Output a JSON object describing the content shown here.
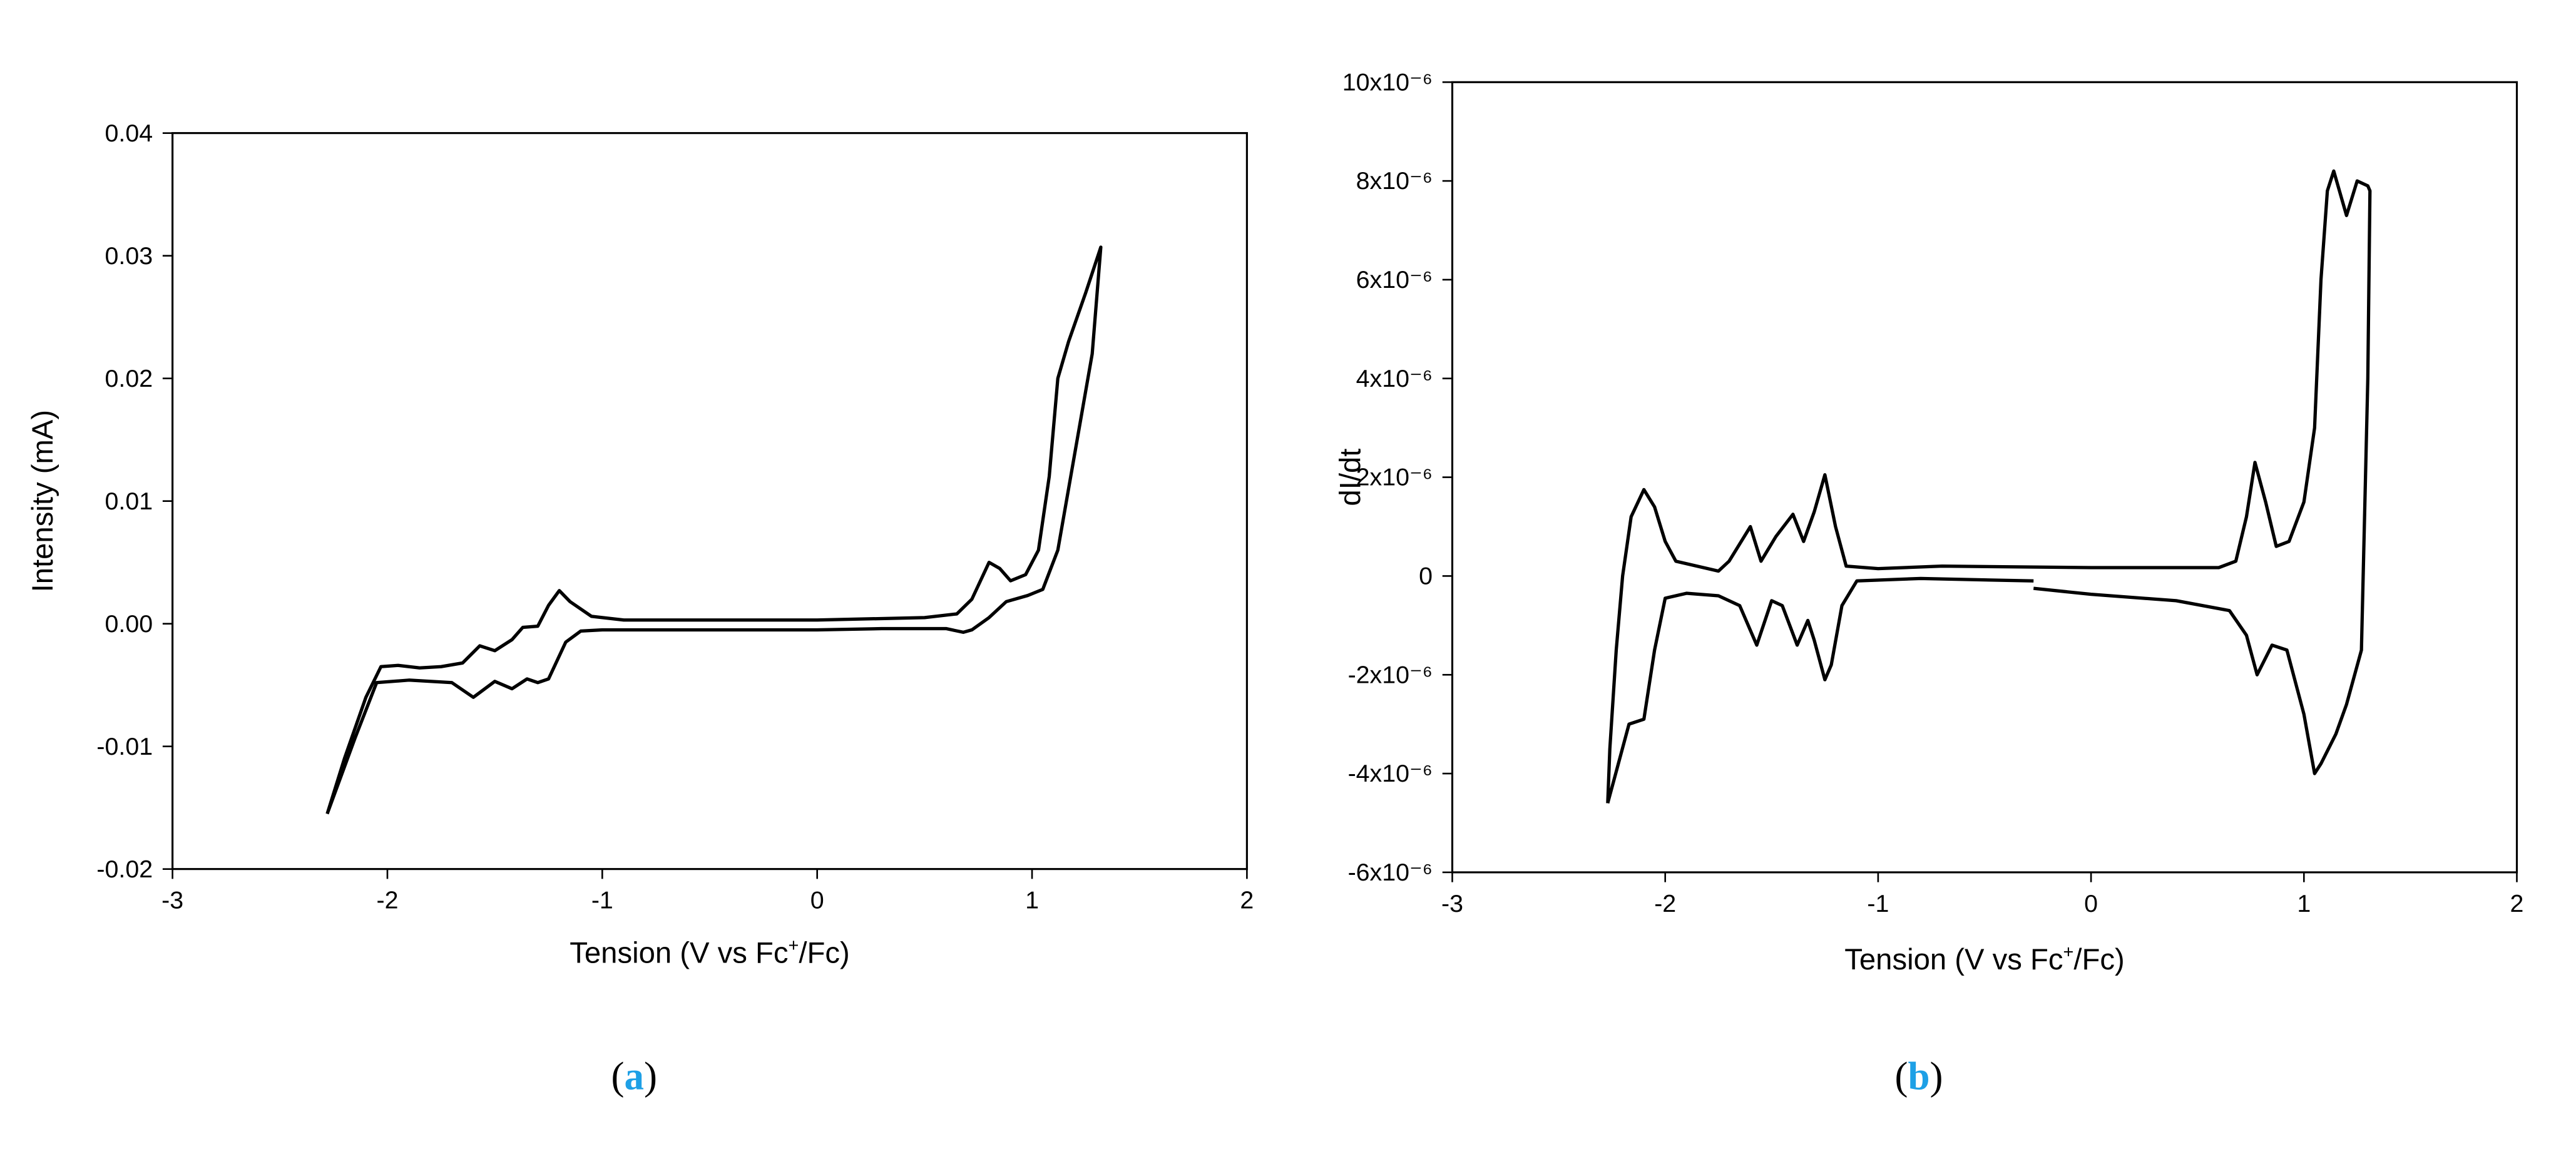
{
  "chart_data": [
    {
      "type": "line",
      "caption": [
        "(",
        "a",
        ")"
      ],
      "xlabel": [
        "Tension (V vs Fc",
        "+",
        "/Fc)"
      ],
      "ylabel": "Intensity (mA)",
      "xlim": [
        -3,
        2
      ],
      "xticks": [
        -3,
        -2,
        -1,
        0,
        1,
        2
      ],
      "ylim": [
        -0.02,
        0.04
      ],
      "yticks": [
        -0.02,
        -0.01,
        {
          "value": 0,
          "label": "0.00"
        },
        0.01,
        0.02,
        0.03,
        0.04
      ],
      "x": [
        -2.28,
        -2.2,
        -2.1,
        -2.03,
        -1.95,
        -1.85,
        -1.75,
        -1.65,
        -1.57,
        -1.5,
        -1.42,
        -1.37,
        -1.3,
        -1.25,
        -1.2,
        -1.15,
        -1.05,
        -0.9,
        -0.5,
        0,
        0.5,
        0.65,
        0.72,
        0.8,
        0.85,
        0.9,
        0.97,
        1.03,
        1.08,
        1.12,
        1.17,
        1.25,
        1.32,
        1.28,
        1.2,
        1.12,
        1.05,
        0.98,
        0.88,
        0.8,
        0.72,
        0.68,
        0.6,
        0.3,
        0,
        -0.5,
        -1,
        -1.1,
        -1.17,
        -1.25,
        -1.3,
        -1.35,
        -1.42,
        -1.5,
        -1.6,
        -1.7,
        -1.9,
        -2.05,
        -2.15,
        -2.28
      ],
      "series": [
        {
          "color": "#000000",
          "values": [
            -0.0155,
            -0.011,
            -0.006,
            -0.0035,
            -0.0034,
            -0.0036,
            -0.0035,
            -0.0032,
            -0.0018,
            -0.0022,
            -0.0013,
            -0.0003,
            -0.0002,
            0.0015,
            0.0027,
            0.0018,
            0.0006,
            0.0003,
            0.0003,
            0.0003,
            0.0005,
            0.0008,
            0.002,
            0.005,
            0.0045,
            0.0035,
            0.004,
            0.006,
            0.012,
            0.02,
            0.023,
            0.027,
            0.0307,
            0.022,
            0.014,
            0.006,
            0.0028,
            0.0023,
            0.0018,
            0.0005,
            -0.0005,
            -0.0007,
            -0.0004,
            -0.0004,
            -0.0005,
            -0.0005,
            -0.0005,
            -0.0006,
            -0.0015,
            -0.0045,
            -0.0048,
            -0.0045,
            -0.0053,
            -0.0047,
            -0.006,
            -0.0048,
            -0.0046,
            -0.0048,
            -0.0093,
            -0.0155
          ]
        }
      ]
    },
    {
      "type": "line",
      "caption": [
        "(",
        "b",
        ")"
      ],
      "xlabel": [
        "Tension (V vs Fc",
        "+",
        "/Fc)"
      ],
      "ylabel": "dI/dt",
      "xlim": [
        -3,
        2
      ],
      "xticks": [
        -3,
        -2,
        -1,
        0,
        1,
        2
      ],
      "ylim": [
        -6e-06,
        1e-05
      ],
      "yticks": [
        {
          "value": -6e-06,
          "label": "-6x10⁻⁶"
        },
        {
          "value": -4e-06,
          "label": "-4x10⁻⁶"
        },
        {
          "value": -2e-06,
          "label": "-2x10⁻⁶"
        },
        0,
        {
          "value": 2e-06,
          "label": "2x10⁻⁶"
        },
        {
          "value": 4e-06,
          "label": "4x10⁻⁶"
        },
        {
          "value": 6e-06,
          "label": "6x10⁻⁶"
        },
        {
          "value": 8e-06,
          "label": "8x10⁻⁶"
        },
        {
          "value": 1e-05,
          "label": "10x10⁻⁶"
        }
      ],
      "x": [
        -2.27,
        -2.26,
        -2.23,
        -2.2,
        -2.16,
        -2.1,
        -2.05,
        -2,
        -1.95,
        -1.85,
        -1.75,
        -1.7,
        -1.6,
        -1.55,
        -1.48,
        -1.4,
        -1.35,
        -1.3,
        -1.25,
        -1.2,
        -1.15,
        -1,
        -0.7,
        0,
        0.6,
        0.68,
        0.73,
        0.77,
        0.82,
        0.87,
        0.93,
        1,
        1.05,
        1.08,
        1.11,
        1.14,
        1.2,
        1.25,
        1.3,
        1.31,
        1.3,
        1.27,
        1.2,
        1.15,
        1.08,
        1.05,
        1,
        0.92,
        0.85,
        0.78,
        0.73,
        0.65,
        0.4,
        0,
        -0.27,
        null,
        -0.27,
        -0.8,
        -1.1,
        -1.17,
        -1.22,
        -1.25,
        -1.3,
        -1.33,
        -1.38,
        -1.45,
        -1.5,
        -1.57,
        -1.65,
        -1.75,
        -1.9,
        -2,
        -2.05,
        -2.1,
        -2.17,
        -2.22,
        -2.27
      ],
      "series": [
        {
          "color": "#000000",
          "values": [
            -4.6e-06,
            -3.5e-06,
            -1.5e-06,
            0,
            1.2e-06,
            1.75e-06,
            1.4e-06,
            7e-07,
            3e-07,
            2e-07,
            1e-07,
            3e-07,
            1e-06,
            3e-07,
            8e-07,
            1.25e-06,
            7e-07,
            1.3e-06,
            2.05e-06,
            1e-06,
            2e-07,
            1.5e-07,
            2e-07,
            1.7e-07,
            1.7e-07,
            3e-07,
            1.2e-06,
            2.3e-06,
            1.5e-06,
            6e-07,
            7e-07,
            1.5e-06,
            3e-06,
            6e-06,
            7.8e-06,
            8.2e-06,
            7.3e-06,
            8e-06,
            7.9e-06,
            7.8e-06,
            4e-06,
            -1.5e-06,
            -2.6e-06,
            -3.2e-06,
            -3.8e-06,
            -4e-06,
            -2.8e-06,
            -1.5e-06,
            -1.4e-06,
            -2e-06,
            -1.2e-06,
            -7e-07,
            -5e-07,
            -3.7e-07,
            -2.5e-07,
            null,
            -1e-07,
            -5e-08,
            -1e-07,
            -6e-07,
            -1.8e-06,
            -2.1e-06,
            -1.3e-06,
            -9e-07,
            -1.4e-06,
            -6e-07,
            -5e-07,
            -1.4e-06,
            -6e-07,
            -4e-07,
            -3.5e-07,
            -4.5e-07,
            -1.5e-06,
            -2.9e-06,
            -3e-06,
            -3.8e-06,
            -4.6e-06
          ]
        }
      ]
    }
  ]
}
